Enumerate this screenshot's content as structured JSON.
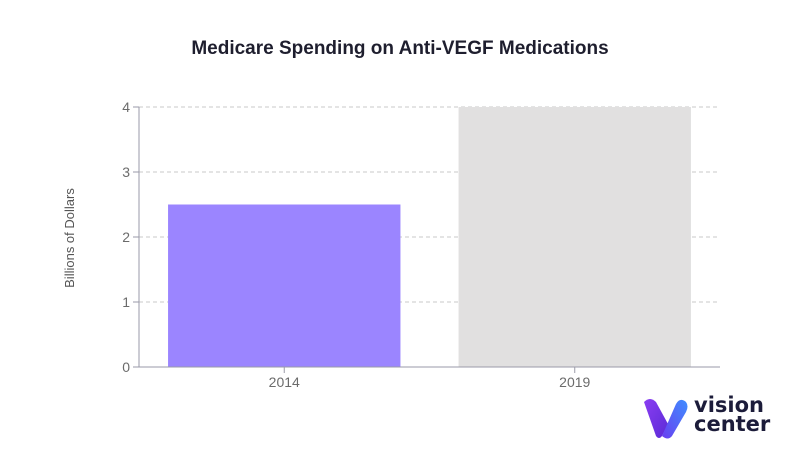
{
  "chart_data": {
    "type": "bar",
    "title": "Medicare Spending on Anti-VEGF Medications",
    "xlabel": "",
    "ylabel": "Billions of Dollars",
    "categories": [
      "2014",
      "2019"
    ],
    "values": [
      2.5,
      4
    ],
    "bar_colors": [
      "#9b85ff",
      "#e1e0e0"
    ],
    "ylim": [
      0,
      4
    ],
    "yticks": [
      0,
      1,
      2,
      3,
      4
    ],
    "grid": true,
    "grid_style": "dashed"
  },
  "brand": {
    "line1": "vision",
    "line2": "center",
    "colors": {
      "primary": "#7b3cf0",
      "secondary": "#4a7dff",
      "text": "#1c1c3a"
    }
  }
}
